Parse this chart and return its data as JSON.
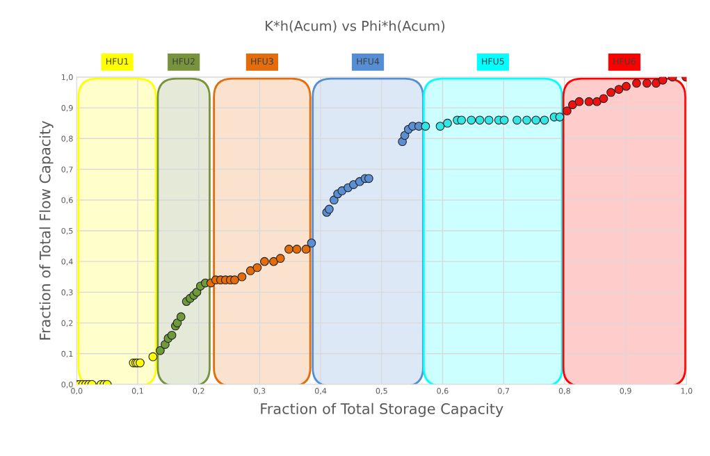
{
  "chart_data": {
    "type": "scatter",
    "title": "K*h(Acum) vs Phi*h(Acum)",
    "xlabel": "Fraction of Total Storage Capacity",
    "ylabel": "Fraction of Total Flow Capacity",
    "xlim": [
      0,
      1
    ],
    "ylim": [
      0,
      1
    ],
    "xticks": [
      {
        "value": 0,
        "label": "0,0"
      },
      {
        "value": 0.1,
        "label": "0,1"
      },
      {
        "value": 0.2,
        "label": "0,2"
      },
      {
        "value": 0.3,
        "label": "0,3"
      },
      {
        "value": 0.4,
        "label": "0,4"
      },
      {
        "value": 0.5,
        "label": "0,5"
      },
      {
        "value": 0.6,
        "label": "0,6"
      },
      {
        "value": 0.7,
        "label": "0,7"
      },
      {
        "value": 0.8,
        "label": "0,8"
      },
      {
        "value": 0.9,
        "label": "0,9"
      },
      {
        "value": 1,
        "label": "1,0"
      }
    ],
    "yticks": [
      {
        "value": 0,
        "label": "0,0"
      },
      {
        "value": 0.1,
        "label": "0,1"
      },
      {
        "value": 0.2,
        "label": "0,2"
      },
      {
        "value": 0.3,
        "label": "0,3"
      },
      {
        "value": 0.4,
        "label": "0,4"
      },
      {
        "value": 0.5,
        "label": "0,5"
      },
      {
        "value": 0.6,
        "label": "0,6"
      },
      {
        "value": 0.7,
        "label": "0,7"
      },
      {
        "value": 0.8,
        "label": "0,8"
      },
      {
        "value": 0.9,
        "label": "0,9"
      },
      {
        "value": 1,
        "label": "1,0"
      }
    ],
    "grid": true,
    "marker": "circle",
    "legend": false,
    "bands": [
      {
        "axis": "x",
        "from": 0.003,
        "to": 0.13,
        "label": "HFU1",
        "color": "#ffff00"
      },
      {
        "axis": "x",
        "from": 0.133,
        "to": 0.218,
        "label": "HFU2",
        "color": "#77933c"
      },
      {
        "axis": "x",
        "from": 0.225,
        "to": 0.383,
        "label": "HFU3",
        "color": "#e46c0a"
      },
      {
        "axis": "x",
        "from": 0.387,
        "to": 0.568,
        "label": "HFU4",
        "color": "#558ed5"
      },
      {
        "axis": "x",
        "from": 0.569,
        "to": 0.796,
        "label": "HFU5",
        "color": "#00ffff"
      },
      {
        "axis": "x",
        "from": 0.798,
        "to": 0.998,
        "label": "HFU6",
        "color": "#ff0000"
      }
    ],
    "series": [
      {
        "color": "#ffff00",
        "x": [
          0.0,
          0.005,
          0.01,
          0.015,
          0.02,
          0.025,
          0.04,
          0.045,
          0.05,
          0.093,
          0.097,
          0.1,
          0.104,
          0.125
        ],
        "values": [
          0,
          0,
          0,
          0,
          0,
          0,
          0,
          0,
          0,
          0.07,
          0.07,
          0.07,
          0.07,
          0.09
        ]
      },
      {
        "color": "#6f9a3a",
        "x": [
          0.137,
          0.145,
          0.15,
          0.156,
          0.162,
          0.165,
          0.171,
          0.18,
          0.186,
          0.192,
          0.197,
          0.203,
          0.211
        ],
        "values": [
          0.11,
          0.13,
          0.15,
          0.16,
          0.19,
          0.2,
          0.22,
          0.27,
          0.28,
          0.29,
          0.3,
          0.32,
          0.33
        ]
      },
      {
        "color": "#e46c0a",
        "x": [
          0.22,
          0.228,
          0.236,
          0.244,
          0.252,
          0.259,
          0.271,
          0.285,
          0.296,
          0.308,
          0.323,
          0.334,
          0.348,
          0.361,
          0.376
        ],
        "values": [
          0.33,
          0.34,
          0.34,
          0.34,
          0.34,
          0.34,
          0.35,
          0.37,
          0.38,
          0.4,
          0.4,
          0.41,
          0.44,
          0.44,
          0.44
        ]
      },
      {
        "color": "#5b8fd4",
        "x": [
          0.385,
          0.41,
          0.414,
          0.422,
          0.428,
          0.435,
          0.445,
          0.454,
          0.464,
          0.473,
          0.479,
          0.534,
          0.538,
          0.544,
          0.551,
          0.561
        ],
        "values": [
          0.46,
          0.56,
          0.57,
          0.6,
          0.62,
          0.63,
          0.64,
          0.65,
          0.66,
          0.67,
          0.67,
          0.79,
          0.81,
          0.83,
          0.84,
          0.84
        ]
      },
      {
        "color": "#33e6e6",
        "x": [
          0.572,
          0.596,
          0.608,
          0.624,
          0.631,
          0.647,
          0.661,
          0.676,
          0.692,
          0.701,
          0.722,
          0.738,
          0.753,
          0.767,
          0.783,
          0.792
        ],
        "values": [
          0.84,
          0.84,
          0.85,
          0.86,
          0.86,
          0.86,
          0.86,
          0.86,
          0.86,
          0.86,
          0.86,
          0.86,
          0.86,
          0.86,
          0.87,
          0.87
        ]
      },
      {
        "color": "#ee1111",
        "x": [
          0.804,
          0.813,
          0.824,
          0.84,
          0.853,
          0.864,
          0.876,
          0.889,
          0.901,
          0.918,
          0.935,
          0.95,
          0.961,
          0.977,
          0.999
        ],
        "values": [
          0.89,
          0.91,
          0.92,
          0.92,
          0.92,
          0.93,
          0.95,
          0.96,
          0.97,
          0.98,
          0.98,
          0.98,
          0.99,
          1.0,
          1.0
        ]
      }
    ]
  }
}
